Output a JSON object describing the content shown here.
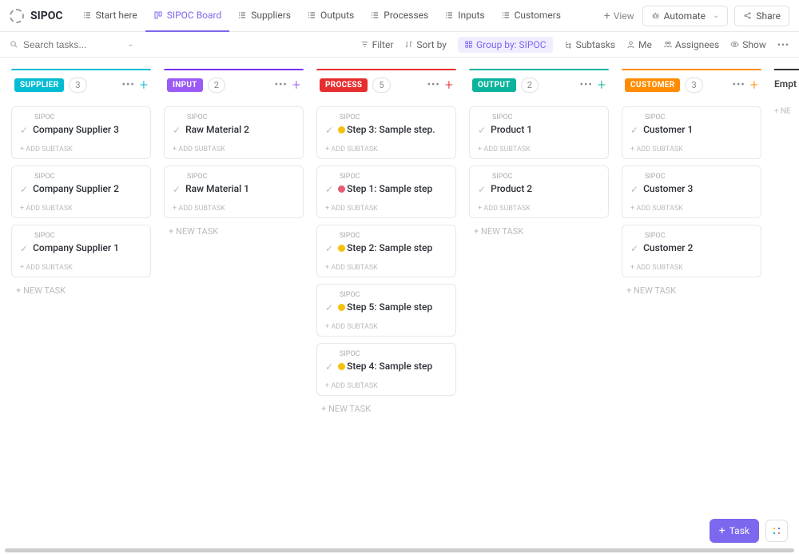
{
  "app": {
    "name": "SIPOC"
  },
  "tabs": [
    {
      "label": "Start here",
      "active": false
    },
    {
      "label": "SIPOC Board",
      "active": true
    },
    {
      "label": "Suppliers",
      "active": false
    },
    {
      "label": "Outputs",
      "active": false
    },
    {
      "label": "Processes",
      "active": false
    },
    {
      "label": "Inputs",
      "active": false
    },
    {
      "label": "Customers",
      "active": false
    }
  ],
  "view_btn": "View",
  "actions": {
    "automate": "Automate",
    "share": "Share"
  },
  "search_placeholder": "Search tasks...",
  "filters": {
    "filter": "Filter",
    "sort": "Sort by",
    "group": "Group by: SIPOC",
    "subtasks": "Subtasks",
    "me": "Me",
    "assignees": "Assignees",
    "show": "Show"
  },
  "columns": [
    {
      "label": "SUPPLIER",
      "count": "3",
      "colors": {
        "border": "#02bcd4",
        "bg": "#02bcd4",
        "add": "#02bcd4"
      },
      "cards": [
        {
          "folder": "SIPOC",
          "title": "Company Supplier 3"
        },
        {
          "folder": "SIPOC",
          "title": "Company Supplier 2"
        },
        {
          "folder": "SIPOC",
          "title": "Company Supplier 1"
        }
      ]
    },
    {
      "label": "INPUT",
      "count": "2",
      "colors": {
        "border": "#7b2ff7",
        "bg": "#9b59f6",
        "add": "#9b59f6"
      },
      "cards": [
        {
          "folder": "SIPOC",
          "title": "Raw Material 2"
        },
        {
          "folder": "SIPOC",
          "title": "Raw Material 1"
        }
      ]
    },
    {
      "label": "PROCESS",
      "count": "5",
      "colors": {
        "border": "#e62e2e",
        "bg": "#e62e2e",
        "add": "#e62e2e"
      },
      "cards": [
        {
          "folder": "SIPOC",
          "title": "Step 3: Sample step.",
          "dot": "#f5c20b"
        },
        {
          "folder": "SIPOC",
          "title": "Step 1: Sample step",
          "dot": "#e85d75"
        },
        {
          "folder": "SIPOC",
          "title": "Step 2: Sample step",
          "dot": "#f5c20b"
        },
        {
          "folder": "SIPOC",
          "title": "Step 5: Sample step",
          "dot": "#f5c20b"
        },
        {
          "folder": "SIPOC",
          "title": "Step 4: Sample step",
          "dot": "#f5c20b"
        }
      ]
    },
    {
      "label": "OUTPUT",
      "count": "2",
      "colors": {
        "border": "#0ab39c",
        "bg": "#0ab39c",
        "add": "#0ab39c"
      },
      "cards": [
        {
          "folder": "SIPOC",
          "title": "Product 1"
        },
        {
          "folder": "SIPOC",
          "title": "Product 2"
        }
      ]
    },
    {
      "label": "CUSTOMER",
      "count": "3",
      "colors": {
        "border": "#ff8c00",
        "bg": "#ff8c00",
        "add": "#ff8c00"
      },
      "cards": [
        {
          "folder": "SIPOC",
          "title": "Customer 1"
        },
        {
          "folder": "SIPOC",
          "title": "Customer 3"
        },
        {
          "folder": "SIPOC",
          "title": "Customer 2"
        }
      ]
    }
  ],
  "labels": {
    "add_subtask": "+ ADD SUBTASK",
    "new_task": "+ NEW TASK",
    "empty": "Empt",
    "empty_new": "+ NE"
  },
  "fab": {
    "task": "Task"
  }
}
